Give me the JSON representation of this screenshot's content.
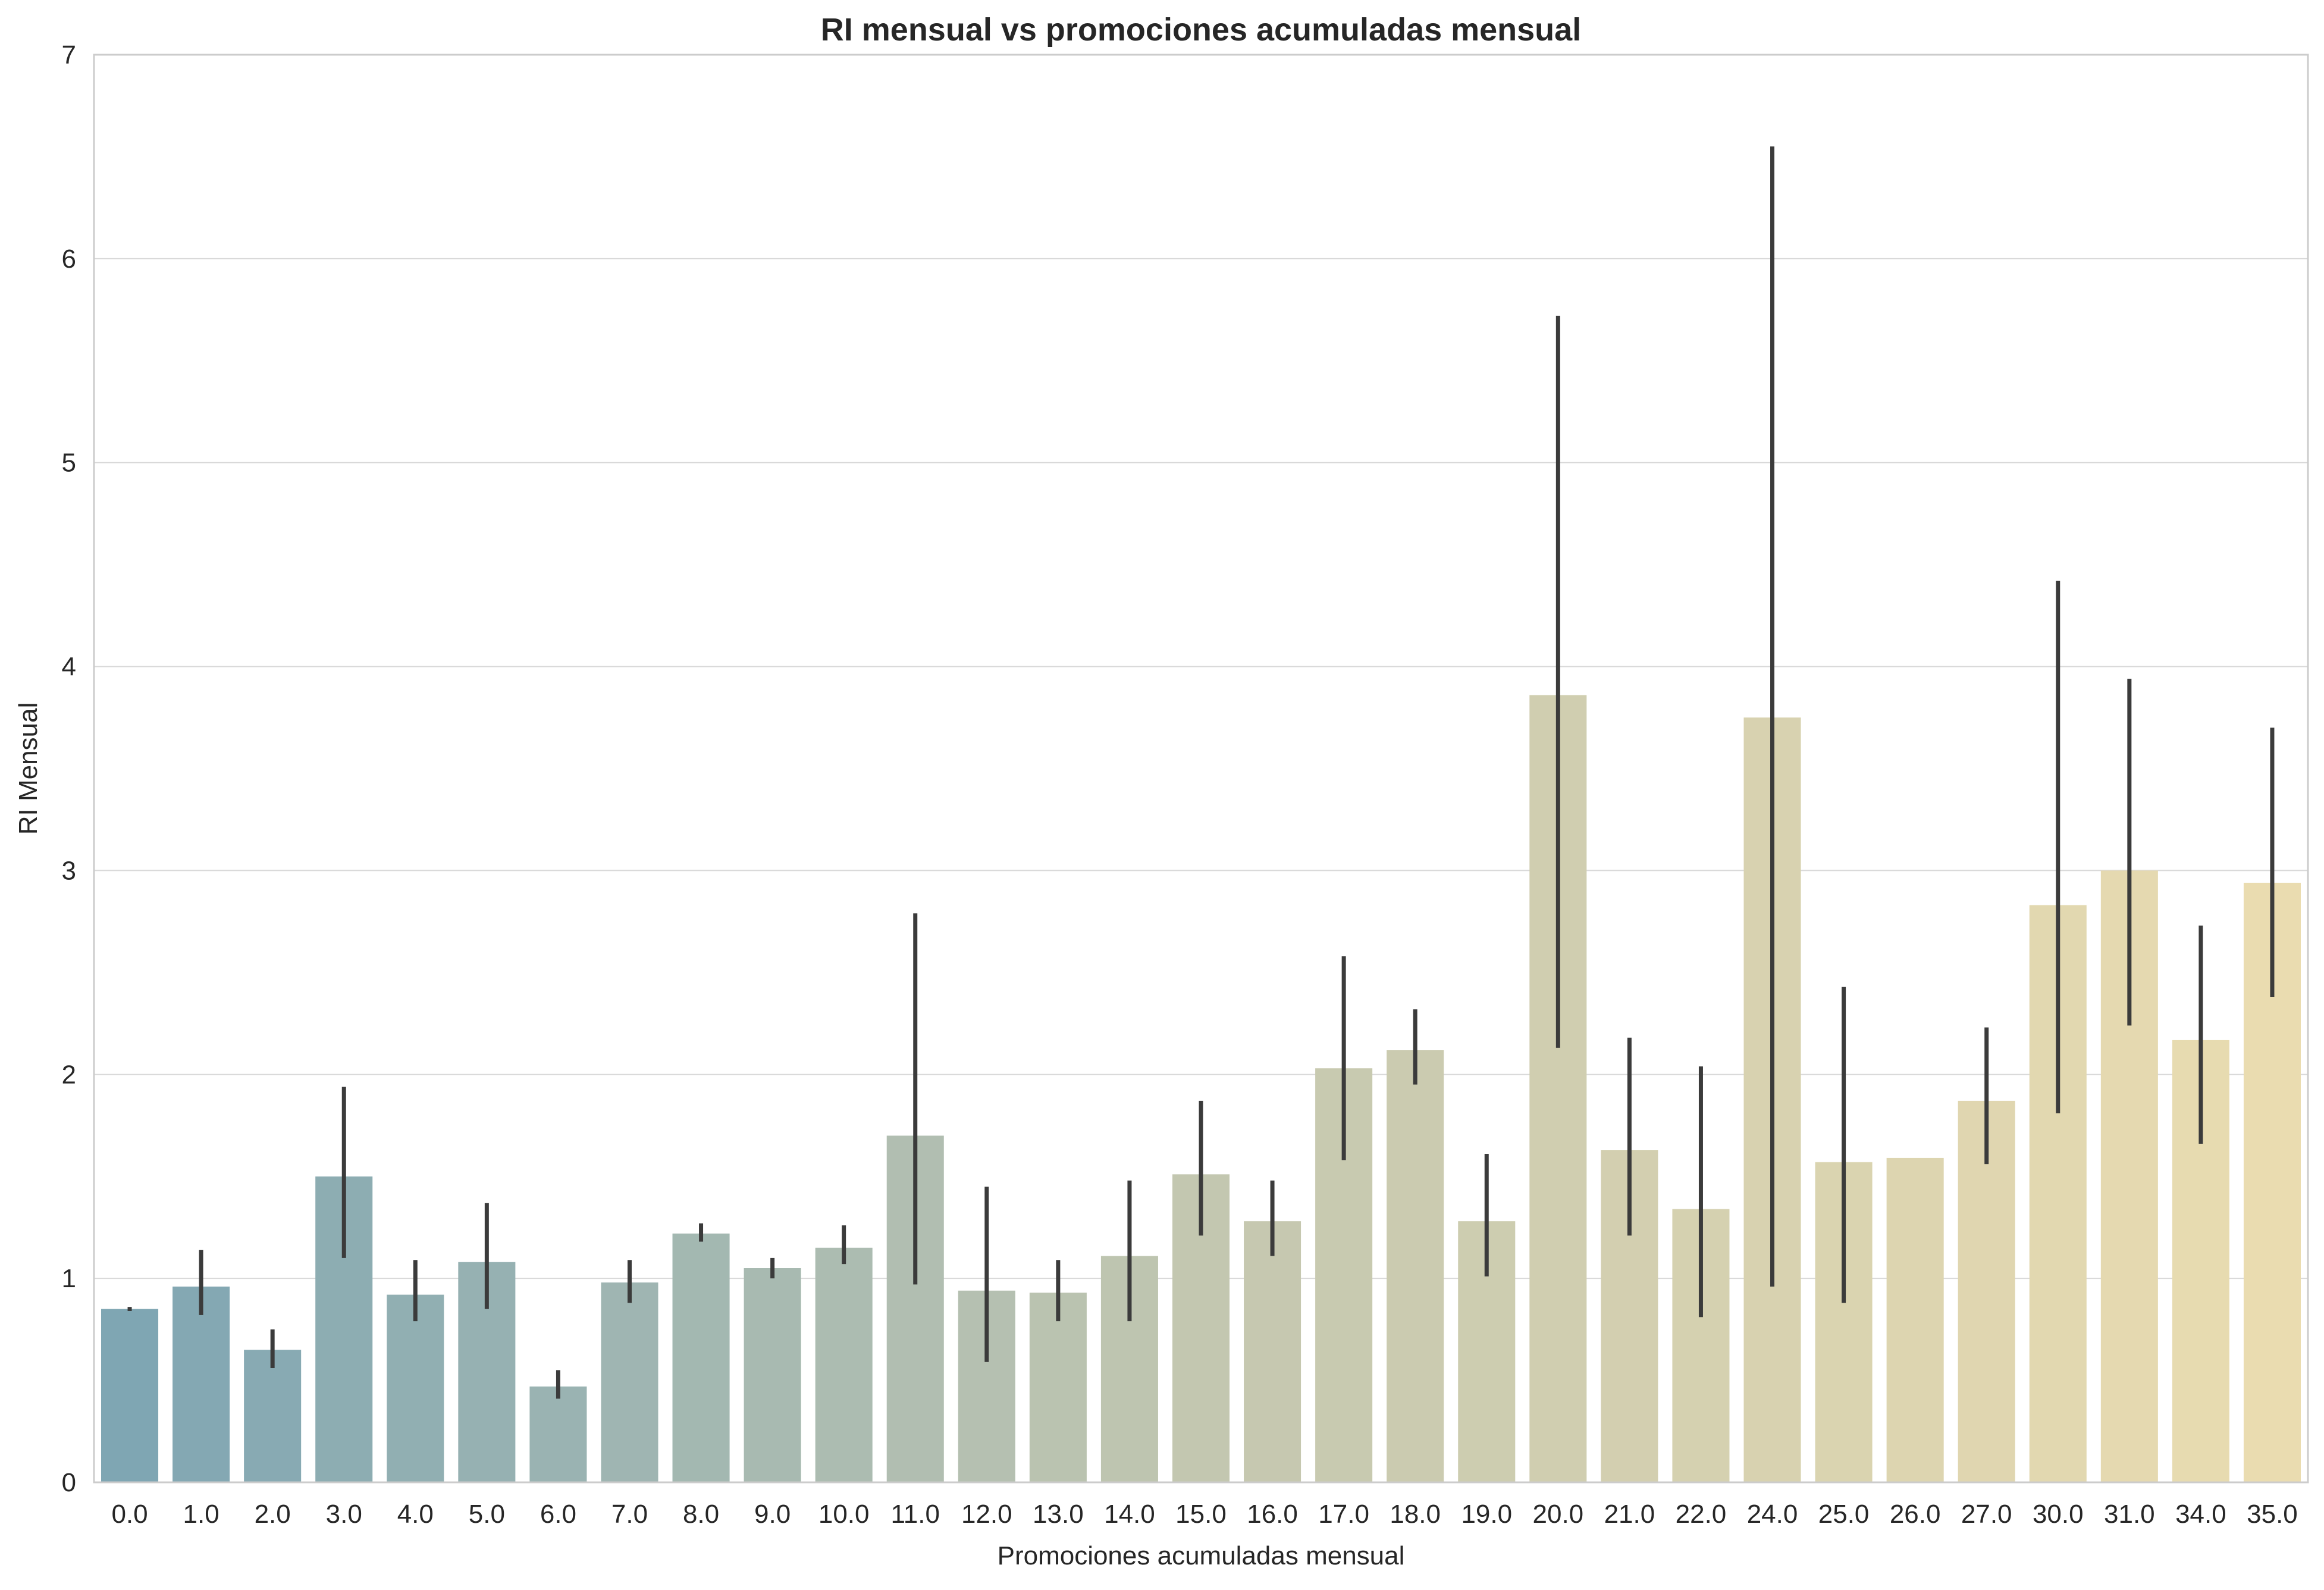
{
  "chart_data": {
    "type": "bar",
    "title": "RI mensual vs promociones acumuladas mensual",
    "xlabel": "Promociones acumuladas mensual",
    "ylabel": "RI Mensual",
    "ylim": [
      0,
      7
    ],
    "yticks": [
      "0",
      "1",
      "2",
      "3",
      "4",
      "5",
      "6",
      "7"
    ],
    "grid": "horizontal",
    "categories": [
      "0.0",
      "1.0",
      "2.0",
      "3.0",
      "4.0",
      "5.0",
      "6.0",
      "7.0",
      "8.0",
      "9.0",
      "10.0",
      "11.0",
      "12.0",
      "13.0",
      "14.0",
      "15.0",
      "16.0",
      "17.0",
      "18.0",
      "19.0",
      "20.0",
      "21.0",
      "22.0",
      "24.0",
      "25.0",
      "26.0",
      "27.0",
      "30.0",
      "31.0",
      "34.0",
      "35.0"
    ],
    "values": [
      0.85,
      0.96,
      0.65,
      1.5,
      0.92,
      1.08,
      0.47,
      0.98,
      1.22,
      1.05,
      1.15,
      1.7,
      0.94,
      0.93,
      1.11,
      1.51,
      1.28,
      2.03,
      2.12,
      1.28,
      3.86,
      1.63,
      1.34,
      3.75,
      1.57,
      1.59,
      1.87,
      2.83,
      3.0,
      2.17,
      2.94
    ],
    "error_low": [
      0.84,
      0.82,
      0.56,
      1.1,
      0.79,
      0.85,
      0.41,
      0.88,
      1.18,
      1.0,
      1.07,
      0.97,
      0.59,
      0.79,
      0.79,
      1.21,
      1.11,
      1.58,
      1.95,
      1.01,
      2.13,
      1.21,
      0.81,
      0.96,
      0.88,
      null,
      1.56,
      1.81,
      2.24,
      1.66,
      2.38
    ],
    "error_high": [
      0.86,
      1.14,
      0.75,
      1.94,
      1.09,
      1.37,
      0.55,
      1.09,
      1.27,
      1.1,
      1.26,
      2.79,
      1.45,
      1.09,
      1.48,
      1.87,
      1.48,
      2.58,
      2.32,
      1.61,
      5.72,
      2.18,
      2.04,
      6.55,
      2.43,
      null,
      2.23,
      4.42,
      3.94,
      2.73,
      3.7
    ],
    "palette": {
      "start": "#7fa6b3",
      "mid": "#c3c7b0",
      "end": "#eadcb0",
      "errorbar": "#3b3b3b",
      "grid": "#d9d9d9",
      "frame": "#cccccc"
    }
  }
}
